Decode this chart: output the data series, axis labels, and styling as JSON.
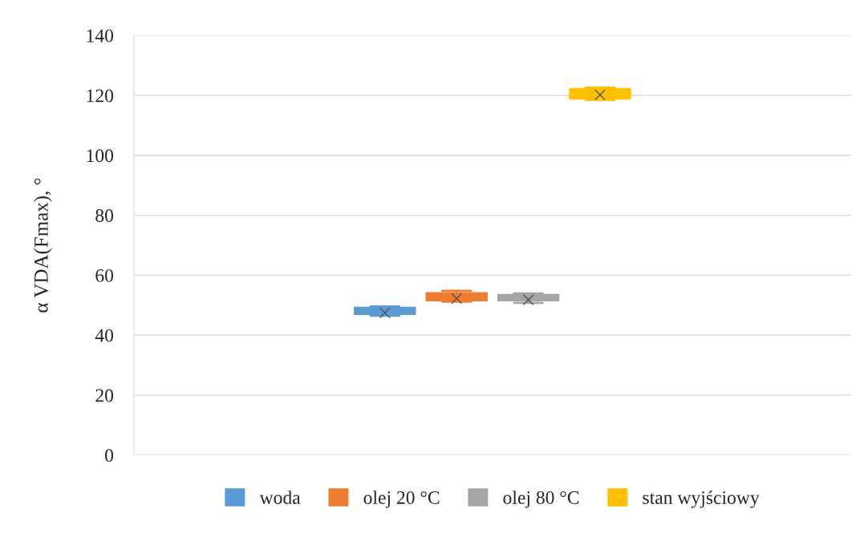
{
  "chart_data": {
    "type": "box",
    "ylabel": "α VDA(Fmax), °",
    "categories": [
      null
    ],
    "series": [
      {
        "name": "woda",
        "color": "#5b9bd5",
        "boxes": [
          {
            "low": 46.5,
            "q1": 46.9,
            "median": 47.8,
            "q3": 49.3,
            "high": 49.6,
            "mean": 47.5
          }
        ]
      },
      {
        "name": "olej 20 °C",
        "color": "#ed7d31",
        "boxes": [
          {
            "low": 51.2,
            "q1": 51.5,
            "median": 52.5,
            "q3": 54.2,
            "high": 54.8,
            "mean": 52.2
          }
        ]
      },
      {
        "name": "olej 80 °C",
        "color": "#a5a5a5",
        "boxes": [
          {
            "low": 50.8,
            "q1": 51.5,
            "median": 52.2,
            "q3": 53.6,
            "high": 53.9,
            "mean": 51.8
          }
        ]
      },
      {
        "name": "stan wyjściowy",
        "color": "#ffc000",
        "boxes": [
          {
            "low": 118.5,
            "q1": 118.8,
            "median": 120.3,
            "q3": 122.3,
            "high": 122.6,
            "mean": 120.2
          }
        ]
      }
    ],
    "ylim": [
      0,
      140
    ],
    "yticks": [
      0,
      20,
      40,
      60,
      80,
      100,
      120,
      140
    ],
    "grid": "y",
    "legend": "bottom"
  }
}
